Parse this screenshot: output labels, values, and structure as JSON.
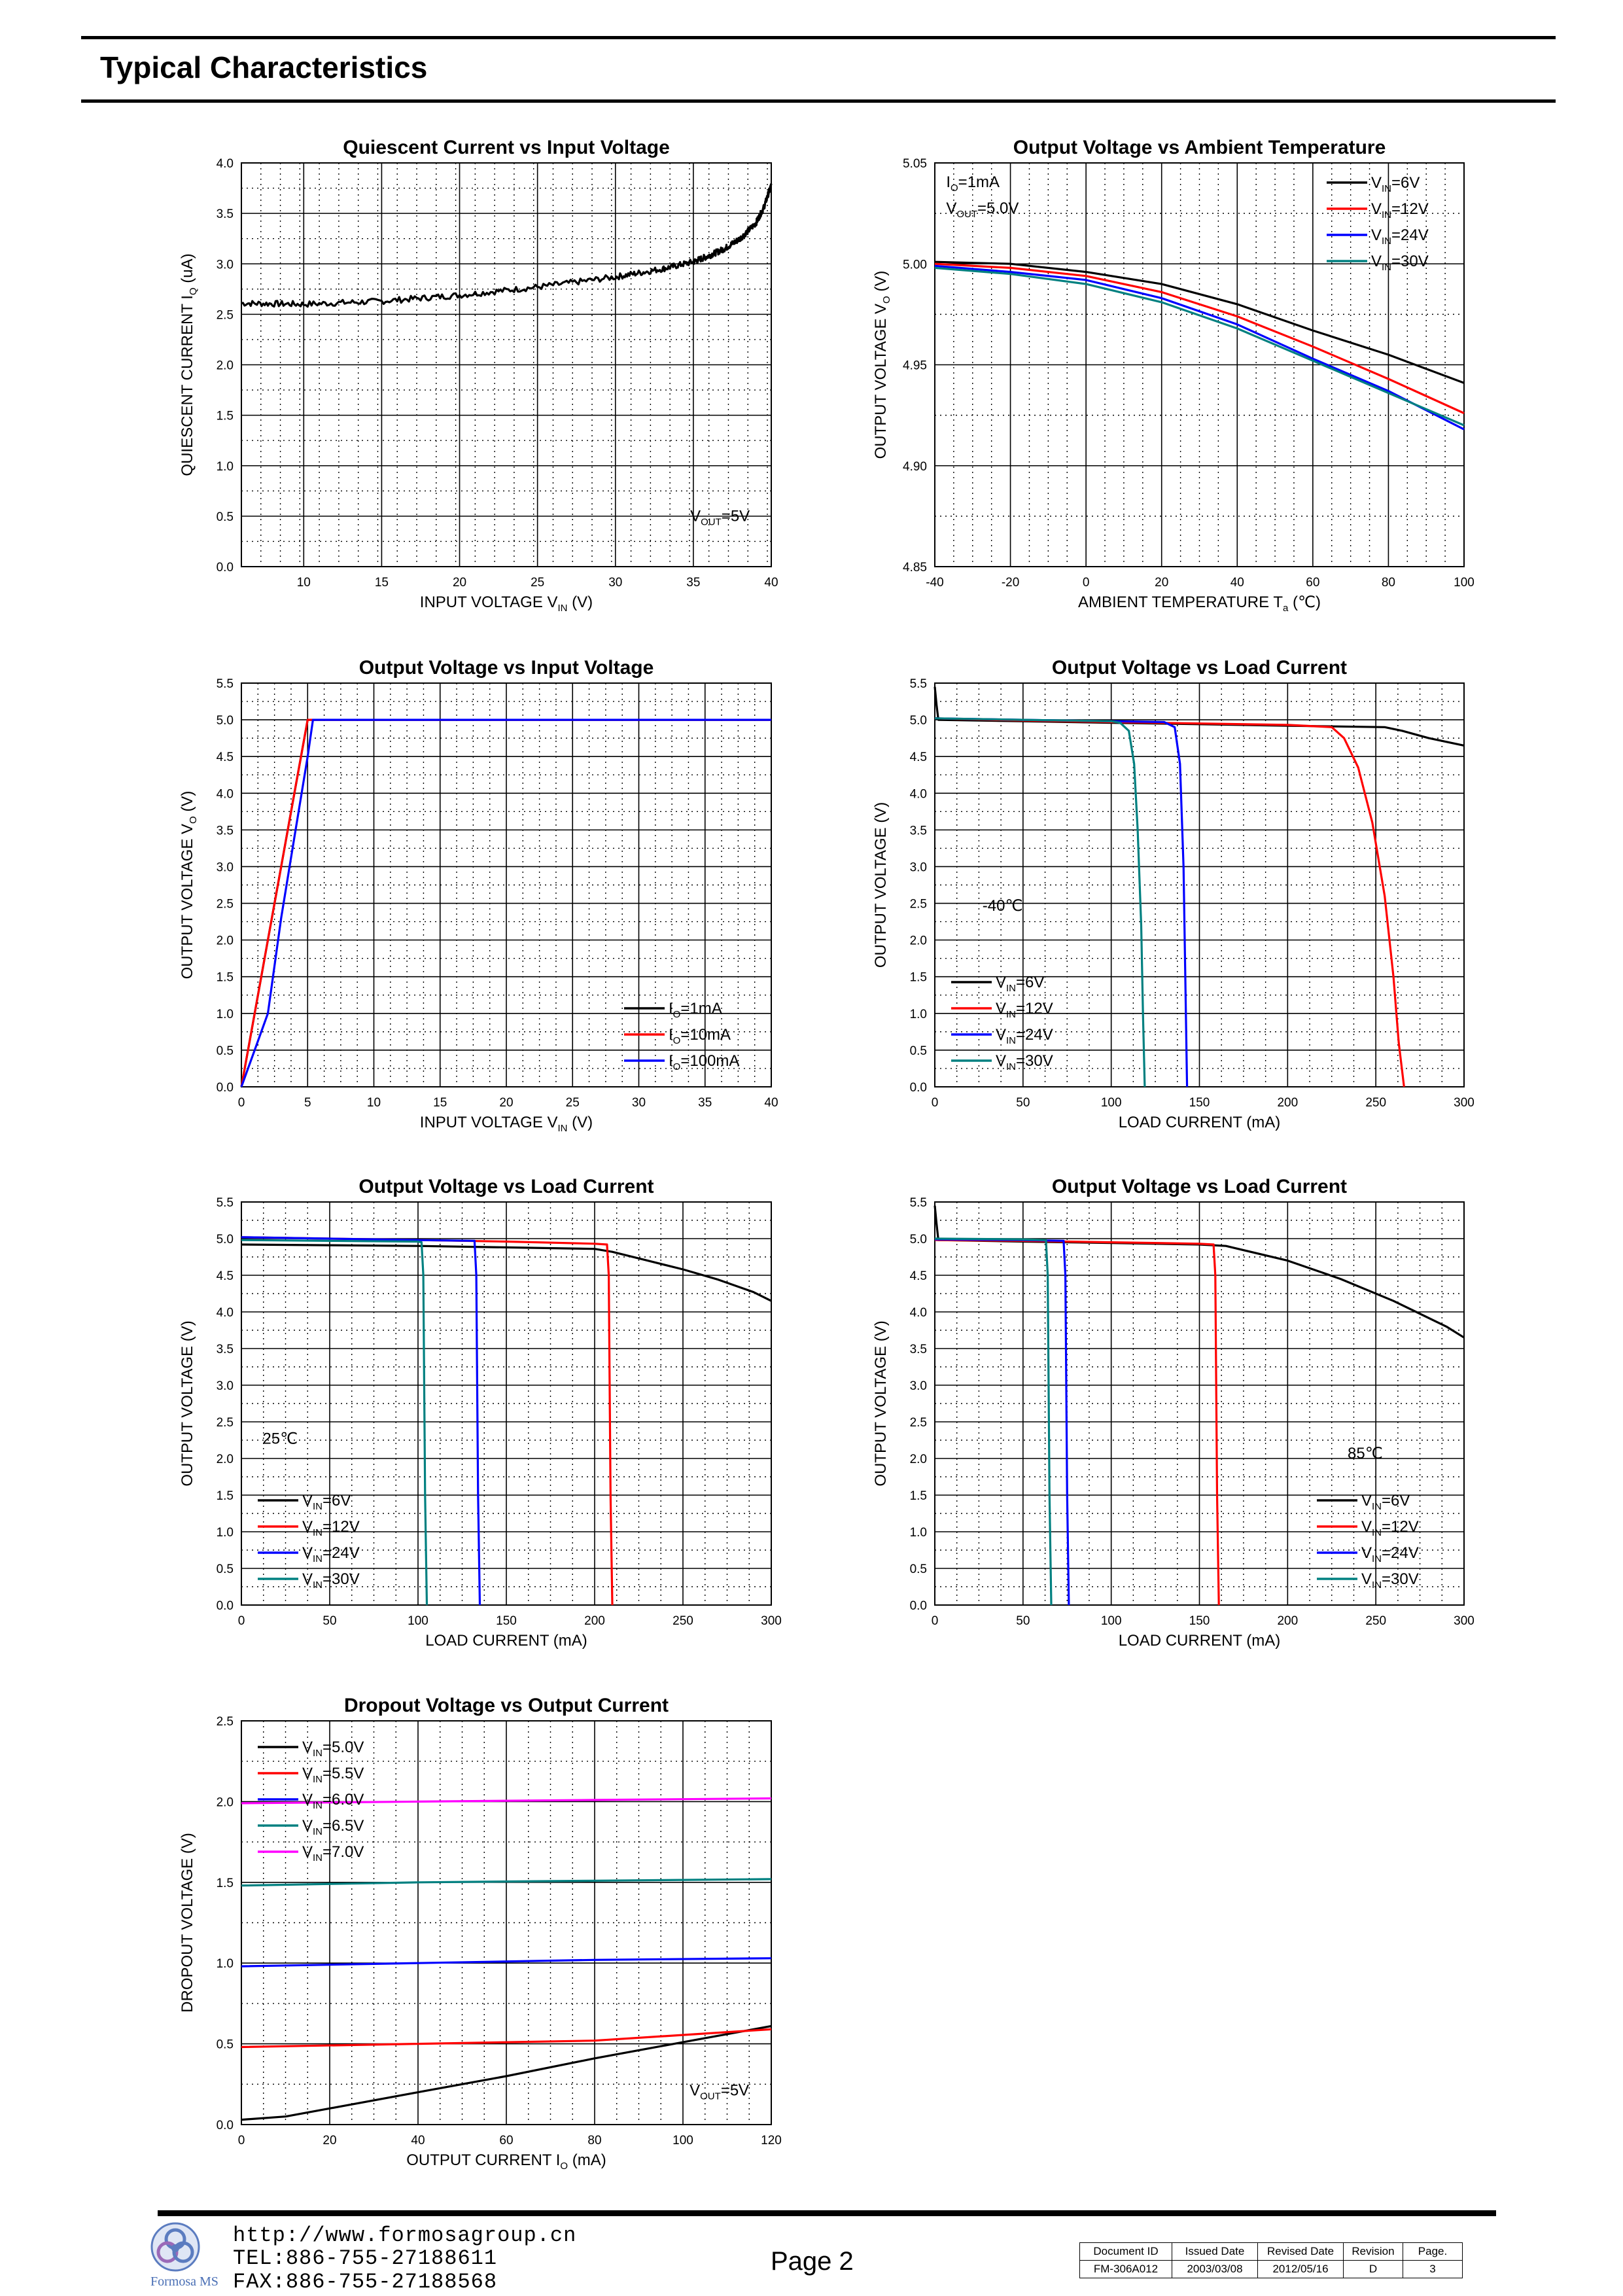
{
  "page": {
    "title": "Typical Characteristics",
    "footer": {
      "url": "http://www.formosagroup.cn",
      "tel": "TEL:886-755-27188611",
      "fax": "FAX:886-755-27188568",
      "page_label": "Page 2",
      "logo_text": "Formosa MS",
      "doc_table": {
        "headers": [
          "Document ID",
          "Issued Date",
          "Revised Date",
          "Revision",
          "Page."
        ],
        "values": [
          "FM-306A012",
          "2003/03/08",
          "2012/05/16",
          "D",
          "3"
        ]
      }
    }
  },
  "chart_data": [
    {
      "id": "c1",
      "type": "line",
      "title": "Quiescent Current vs Input Voltage",
      "ylabel": "QUIESCENT CURRENT I_Q (uA)",
      "xlabel": "INPUT VOLTAGE V_IN (V)",
      "xlim": [
        6,
        40
      ],
      "ylim": [
        0,
        4.0
      ],
      "xticks": [
        10,
        15,
        20,
        25,
        30,
        35,
        40
      ],
      "yticks": [
        0,
        0.5,
        1.0,
        1.5,
        2.0,
        2.5,
        3.0,
        3.5,
        4.0
      ],
      "annotations": [
        {
          "text": "V_OUT=5V",
          "at": [
            34.8,
            0.45
          ]
        }
      ],
      "series": [
        {
          "name": "IQ",
          "color": "#000000",
          "noise": 0.03,
          "x": [
            6,
            10,
            15,
            20,
            25,
            30,
            33,
            35,
            36,
            37,
            38,
            39,
            39.5,
            40
          ],
          "y": [
            2.61,
            2.6,
            2.63,
            2.69,
            2.77,
            2.87,
            2.95,
            3.02,
            3.08,
            3.15,
            3.25,
            3.4,
            3.55,
            3.78
          ]
        }
      ]
    },
    {
      "id": "c2",
      "type": "line",
      "title": "Output Voltage vs Ambient Temperature",
      "ylabel": "OUTPUT VOLTAGE V_O (V)",
      "xlabel": "AMBIENT TEMPERATURE T_a (℃)",
      "xlim": [
        -40,
        100
      ],
      "ylim": [
        4.85,
        5.05
      ],
      "xticks": [
        -40,
        -20,
        0,
        20,
        40,
        60,
        80,
        100
      ],
      "yticks": [
        4.85,
        4.9,
        4.95,
        5.0,
        5.05
      ],
      "annotations": [
        {
          "text": "I_O=1mA",
          "at": [
            -37,
            5.038
          ]
        },
        {
          "text": "V_OUT=5.0V",
          "at": [
            -37,
            5.025
          ]
        }
      ],
      "legend": "top-right",
      "series": [
        {
          "name": "V_IN=6V",
          "color": "#000000",
          "x": [
            -40,
            -20,
            0,
            20,
            40,
            60,
            80,
            100
          ],
          "y": [
            5.001,
            5.0,
            4.996,
            4.99,
            4.98,
            4.967,
            4.955,
            4.941
          ]
        },
        {
          "name": "V_IN=12V",
          "color": "#ff0000",
          "x": [
            -40,
            -20,
            0,
            20,
            40,
            60,
            80,
            100
          ],
          "y": [
            5.0,
            4.998,
            4.994,
            4.986,
            4.974,
            4.959,
            4.943,
            4.926
          ]
        },
        {
          "name": "V_IN=24V",
          "color": "#0000ff",
          "x": [
            -40,
            -20,
            0,
            20,
            40,
            60,
            80,
            100
          ],
          "y": [
            4.999,
            4.996,
            4.992,
            4.983,
            4.97,
            4.953,
            4.937,
            4.918
          ]
        },
        {
          "name": "V_IN=30V",
          "color": "#008080",
          "x": [
            -40,
            -20,
            0,
            20,
            40,
            60,
            80,
            100
          ],
          "y": [
            4.998,
            4.995,
            4.99,
            4.981,
            4.968,
            4.952,
            4.936,
            4.92
          ]
        }
      ]
    },
    {
      "id": "c3",
      "type": "line",
      "title": "Output Voltage vs Input Voltage",
      "ylabel": "OUTPUT VOLTAGE V_O (V)",
      "xlabel": "INPUT VOLTAGE V_IN (V)",
      "xlim": [
        0,
        40
      ],
      "ylim": [
        0,
        5.5
      ],
      "xticks": [
        0,
        5,
        10,
        15,
        20,
        25,
        30,
        35,
        40
      ],
      "yticks": [
        0,
        0.5,
        1.0,
        1.5,
        2.0,
        2.5,
        3.0,
        3.5,
        4.0,
        4.5,
        5.0,
        5.5
      ],
      "legend": "bottom-right",
      "series": [
        {
          "name": "I_O=1mA",
          "color": "#000000",
          "x": [
            0,
            1,
            2,
            3,
            4,
            5,
            40
          ],
          "y": [
            0,
            1.0,
            2.0,
            3.0,
            4.0,
            5.0,
            5.0
          ]
        },
        {
          "name": "I_O=10mA",
          "color": "#ff0000",
          "x": [
            0,
            1,
            2,
            3,
            4,
            5,
            40
          ],
          "y": [
            0,
            1.0,
            2.0,
            3.0,
            4.0,
            5.0,
            5.0
          ]
        },
        {
          "name": "I_O=100mA",
          "color": "#0000ff",
          "x": [
            0,
            1,
            2,
            3,
            4,
            5,
            5.4,
            40
          ],
          "y": [
            0,
            0.5,
            1.0,
            2.3,
            3.4,
            4.5,
            5.0,
            5.0
          ]
        }
      ]
    },
    {
      "id": "c4",
      "type": "line",
      "title": "Output Voltage vs Load Current",
      "ylabel": "OUTPUT VOLTAGE (V)",
      "xlabel": "LOAD CURRENT (mA)",
      "xlim": [
        0,
        300
      ],
      "ylim": [
        0,
        5.5
      ],
      "xticks": [
        0,
        50,
        100,
        150,
        200,
        250,
        300
      ],
      "yticks": [
        0,
        0.5,
        1.0,
        1.5,
        2.0,
        2.5,
        3.0,
        3.5,
        4.0,
        4.5,
        5.0,
        5.5
      ],
      "annotations": [
        {
          "text": "-40℃",
          "at": [
            27,
            2.4
          ]
        }
      ],
      "legend": "bottom-left",
      "series": [
        {
          "name": "V_IN=6V",
          "color": "#000000",
          "x": [
            0,
            1,
            2,
            50,
            100,
            150,
            200,
            255,
            265,
            280,
            300
          ],
          "y": [
            5.45,
            5.2,
            5.0,
            4.98,
            4.96,
            4.94,
            4.92,
            4.9,
            4.85,
            4.75,
            4.65
          ]
        },
        {
          "name": "V_IN=12V",
          "color": "#ff0000",
          "x": [
            0,
            50,
            100,
            150,
            200,
            225,
            232,
            240,
            248,
            255,
            260,
            263,
            266
          ],
          "y": [
            5.02,
            4.99,
            4.97,
            4.95,
            4.93,
            4.9,
            4.75,
            4.35,
            3.6,
            2.6,
            1.5,
            0.6,
            0
          ]
        },
        {
          "name": "V_IN=24V",
          "color": "#0000ff",
          "x": [
            0,
            50,
            100,
            130,
            136,
            139,
            141,
            142,
            143
          ],
          "y": [
            5.02,
            5.0,
            4.98,
            4.97,
            4.9,
            4.4,
            3.0,
            1.5,
            0
          ]
        },
        {
          "name": "V_IN=30V",
          "color": "#008080",
          "x": [
            0,
            50,
            100,
            105,
            110,
            113,
            115,
            117,
            118,
            119
          ],
          "y": [
            5.02,
            5.0,
            4.98,
            4.96,
            4.85,
            4.4,
            3.5,
            2.2,
            1.0,
            0
          ]
        }
      ]
    },
    {
      "id": "c5",
      "type": "line",
      "title": "Output Voltage vs Load Current",
      "ylabel": "OUTPUT VOLTAGE (V)",
      "xlabel": "LOAD CURRENT (mA)",
      "xlim": [
        0,
        300
      ],
      "ylim": [
        0,
        5.5
      ],
      "xticks": [
        0,
        50,
        100,
        150,
        200,
        250,
        300
      ],
      "yticks": [
        0,
        0.5,
        1.0,
        1.5,
        2.0,
        2.5,
        3.0,
        3.5,
        4.0,
        4.5,
        5.0,
        5.5
      ],
      "annotations": [
        {
          "text": "25℃",
          "at": [
            12,
            2.2
          ]
        }
      ],
      "legend": "bottom-left",
      "series": [
        {
          "name": "V_IN=6V",
          "color": "#000000",
          "x": [
            0,
            50,
            100,
            150,
            200,
            210,
            230,
            250,
            270,
            290,
            300
          ],
          "y": [
            4.92,
            4.91,
            4.9,
            4.88,
            4.86,
            4.82,
            4.7,
            4.58,
            4.44,
            4.27,
            4.15
          ]
        },
        {
          "name": "V_IN=12V",
          "color": "#ff0000",
          "x": [
            0,
            50,
            100,
            150,
            200,
            207,
            208,
            209,
            210
          ],
          "y": [
            5.02,
            5.0,
            4.98,
            4.96,
            4.93,
            4.92,
            4.5,
            1.5,
            0
          ]
        },
        {
          "name": "V_IN=24V",
          "color": "#0000ff",
          "x": [
            0,
            50,
            100,
            132,
            133,
            134,
            135
          ],
          "y": [
            5.02,
            5.0,
            4.98,
            4.97,
            4.5,
            1.5,
            0
          ]
        },
        {
          "name": "V_IN=30V",
          "color": "#008080",
          "x": [
            0,
            50,
            100,
            102,
            103,
            104,
            105
          ],
          "y": [
            4.98,
            4.97,
            4.96,
            4.95,
            4.5,
            1.5,
            0
          ]
        }
      ]
    },
    {
      "id": "c6",
      "type": "line",
      "title": "Output Voltage vs Load Current",
      "ylabel": "OUTPUT VOLTAGE (V)",
      "xlabel": "LOAD CURRENT (mA)",
      "xlim": [
        0,
        300
      ],
      "ylim": [
        0,
        5.5
      ],
      "xticks": [
        0,
        50,
        100,
        150,
        200,
        250,
        300
      ],
      "yticks": [
        0,
        0.5,
        1.0,
        1.5,
        2.0,
        2.5,
        3.0,
        3.5,
        4.0,
        4.5,
        5.0,
        5.5
      ],
      "annotations": [
        {
          "text": "85℃",
          "at": [
            234,
            2.0
          ]
        }
      ],
      "legend": "bottom-right",
      "series": [
        {
          "name": "V_IN=6V",
          "color": "#000000",
          "x": [
            0,
            1,
            2,
            50,
            100,
            150,
            165,
            200,
            230,
            260,
            290,
            300
          ],
          "y": [
            5.45,
            5.2,
            4.98,
            4.96,
            4.94,
            4.92,
            4.9,
            4.7,
            4.45,
            4.15,
            3.8,
            3.65
          ]
        },
        {
          "name": "V_IN=12V",
          "color": "#ff0000",
          "x": [
            0,
            50,
            100,
            150,
            158,
            159,
            160,
            161
          ],
          "y": [
            4.98,
            4.97,
            4.95,
            4.93,
            4.92,
            4.5,
            1.5,
            0
          ]
        },
        {
          "name": "V_IN=24V",
          "color": "#0000ff",
          "x": [
            0,
            50,
            73,
            74,
            75,
            76
          ],
          "y": [
            4.99,
            4.98,
            4.97,
            4.5,
            1.5,
            0
          ]
        },
        {
          "name": "V_IN=30V",
          "color": "#008080",
          "x": [
            0,
            50,
            63,
            64,
            65,
            66
          ],
          "y": [
            5.0,
            4.99,
            4.98,
            4.5,
            1.5,
            0
          ]
        }
      ]
    },
    {
      "id": "c7",
      "type": "line",
      "title": "Dropout Voltage vs Output Current",
      "ylabel": "DROPOUT VOLTAGE (V)",
      "xlabel": "OUTPUT CURRENT I_O (mA)",
      "xlim": [
        0,
        120
      ],
      "ylim": [
        0,
        2.5
      ],
      "xticks": [
        0,
        20,
        40,
        60,
        80,
        100,
        120
      ],
      "yticks": [
        0,
        0.5,
        1.0,
        1.5,
        2.0,
        2.5
      ],
      "annotations": [
        {
          "text": "V_OUT=5V",
          "at": [
            101.5,
            0.18
          ]
        }
      ],
      "legend": "top-left",
      "series": [
        {
          "name": "V_IN=5.0V",
          "color": "#000000",
          "x": [
            0,
            10,
            20,
            40,
            60,
            80,
            100,
            120
          ],
          "y": [
            0.03,
            0.05,
            0.1,
            0.2,
            0.3,
            0.41,
            0.51,
            0.61
          ]
        },
        {
          "name": "V_IN=5.5V",
          "color": "#ff0000",
          "x": [
            0,
            40,
            80,
            120
          ],
          "y": [
            0.48,
            0.5,
            0.52,
            0.59
          ]
        },
        {
          "name": "V_IN=6.0V",
          "color": "#0000ff",
          "x": [
            0,
            40,
            80,
            120
          ],
          "y": [
            0.98,
            1.0,
            1.02,
            1.03
          ]
        },
        {
          "name": "V_IN=6.5V",
          "color": "#008080",
          "x": [
            0,
            40,
            80,
            120
          ],
          "y": [
            1.48,
            1.5,
            1.51,
            1.52
          ]
        },
        {
          "name": "V_IN=7.0V",
          "color": "#ff00ff",
          "x": [
            0,
            40,
            80,
            120
          ],
          "y": [
            1.99,
            2.0,
            2.01,
            2.02
          ]
        }
      ]
    }
  ]
}
